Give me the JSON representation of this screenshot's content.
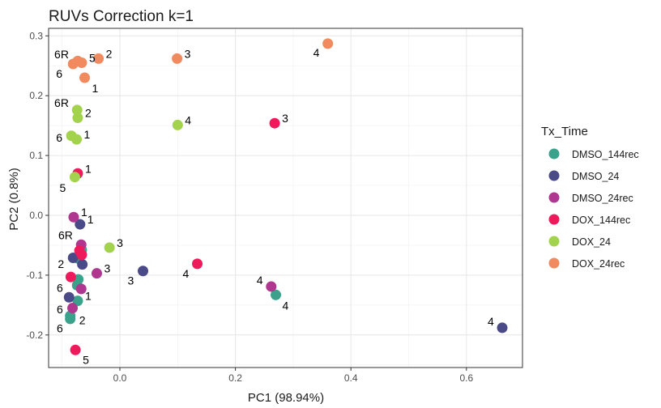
{
  "chart_data": {
    "type": "scatter",
    "title": "RUVs Correction k=1",
    "xlabel": "PC1 (98.94%)",
    "ylabel": "PC2 (0.8%)",
    "xlim": [
      -0.125,
      0.695
    ],
    "ylim": [
      -0.255,
      0.312
    ],
    "xticks": [
      0.0,
      0.2,
      0.4,
      0.6
    ],
    "xtick_labels": [
      "0.0",
      "0.2",
      "0.4",
      "0.6"
    ],
    "yticks": [
      -0.2,
      -0.1,
      0.0,
      0.1,
      0.2,
      0.3
    ],
    "ytick_labels": [
      "-0.2",
      "-0.1",
      "0.0",
      "0.1",
      "0.2",
      "0.3"
    ],
    "grid": true,
    "legend": {
      "title": "Tx_Time",
      "position": "right"
    },
    "series": [
      {
        "name": "DMSO_144rec",
        "color": "#3AA18A",
        "points": [
          {
            "x": -0.073,
            "y": -0.072,
            "label": ""
          },
          {
            "x": -0.066,
            "y": -0.058,
            "label": ""
          },
          {
            "x": -0.072,
            "y": -0.107,
            "label": ""
          },
          {
            "x": -0.074,
            "y": -0.117,
            "label": ""
          },
          {
            "x": -0.073,
            "y": -0.143,
            "label": "1"
          },
          {
            "x": -0.086,
            "y": -0.168,
            "label": ""
          },
          {
            "x": -0.086,
            "y": -0.173,
            "label": ""
          },
          {
            "x": 0.27,
            "y": -0.133,
            "label": "4"
          }
        ]
      },
      {
        "name": "DMSO_24",
        "color": "#4B4A88",
        "points": [
          {
            "x": -0.069,
            "y": -0.015,
            "label": "1"
          },
          {
            "x": -0.081,
            "y": -0.071,
            "label": ""
          },
          {
            "x": -0.065,
            "y": -0.082,
            "label": ""
          },
          {
            "x": 0.04,
            "y": -0.093,
            "label": "3"
          },
          {
            "x": -0.088,
            "y": -0.137,
            "label": ""
          },
          {
            "x": 0.662,
            "y": -0.188,
            "label": "4"
          }
        ]
      },
      {
        "name": "DMSO_24rec",
        "color": "#B0378F",
        "points": [
          {
            "x": -0.08,
            "y": -0.003,
            "label": "1"
          },
          {
            "x": -0.067,
            "y": -0.049,
            "label": ""
          },
          {
            "x": -0.04,
            "y": -0.097,
            "label": "3"
          },
          {
            "x": -0.067,
            "y": -0.123,
            "label": ""
          },
          {
            "x": -0.082,
            "y": -0.155,
            "label": ""
          },
          {
            "x": 0.262,
            "y": -0.119,
            "label": "4"
          }
        ]
      },
      {
        "name": "DOX_144rec",
        "color": "#EE1B5C",
        "points": [
          {
            "x": -0.073,
            "y": 0.07,
            "label": "1"
          },
          {
            "x": -0.07,
            "y": -0.059,
            "label": ""
          },
          {
            "x": -0.066,
            "y": -0.066,
            "label": ""
          },
          {
            "x": -0.085,
            "y": -0.103,
            "label": ""
          },
          {
            "x": 0.134,
            "y": -0.081,
            "label": "4"
          },
          {
            "x": 0.268,
            "y": 0.154,
            "label": "3"
          },
          {
            "x": -0.077,
            "y": -0.225,
            "label": "5"
          }
        ]
      },
      {
        "name": "DOX_24",
        "color": "#A3D24C",
        "points": [
          {
            "x": -0.074,
            "y": 0.176,
            "label": ""
          },
          {
            "x": -0.073,
            "y": 0.163,
            "label": "2"
          },
          {
            "x": -0.084,
            "y": 0.133,
            "label": ""
          },
          {
            "x": -0.075,
            "y": 0.127,
            "label": "1"
          },
          {
            "x": -0.078,
            "y": 0.064,
            "label": ""
          },
          {
            "x": -0.018,
            "y": -0.054,
            "label": "3"
          },
          {
            "x": 0.1,
            "y": 0.151,
            "label": "4"
          }
        ]
      },
      {
        "name": "DOX_24rec",
        "color": "#F18A5E",
        "points": [
          {
            "x": -0.073,
            "y": 0.258,
            "label": ""
          },
          {
            "x": -0.081,
            "y": 0.253,
            "label": ""
          },
          {
            "x": -0.066,
            "y": 0.255,
            "label": "5"
          },
          {
            "x": -0.037,
            "y": 0.262,
            "label": "2"
          },
          {
            "x": -0.061,
            "y": 0.23,
            "label": "1"
          },
          {
            "x": 0.099,
            "y": 0.262,
            "label": "3"
          },
          {
            "x": 0.36,
            "y": 0.287,
            "label": "4"
          }
        ]
      }
    ],
    "annotations": [
      {
        "text": "6R",
        "x": -0.101,
        "y": 0.269
      },
      {
        "text": "6",
        "x": -0.105,
        "y": 0.237
      },
      {
        "text": "6R",
        "x": -0.101,
        "y": 0.188
      },
      {
        "text": "6",
        "x": -0.105,
        "y": 0.13
      },
      {
        "text": "5",
        "x": -0.099,
        "y": 0.046
      },
      {
        "text": "6R",
        "x": -0.094,
        "y": -0.033
      },
      {
        "text": "2",
        "x": -0.102,
        "y": -0.081
      },
      {
        "text": "6",
        "x": -0.104,
        "y": -0.121
      },
      {
        "text": "6",
        "x": -0.104,
        "y": -0.157
      },
      {
        "text": "2",
        "x": -0.065,
        "y": -0.175
      },
      {
        "text": "6",
        "x": -0.104,
        "y": -0.189
      }
    ]
  }
}
